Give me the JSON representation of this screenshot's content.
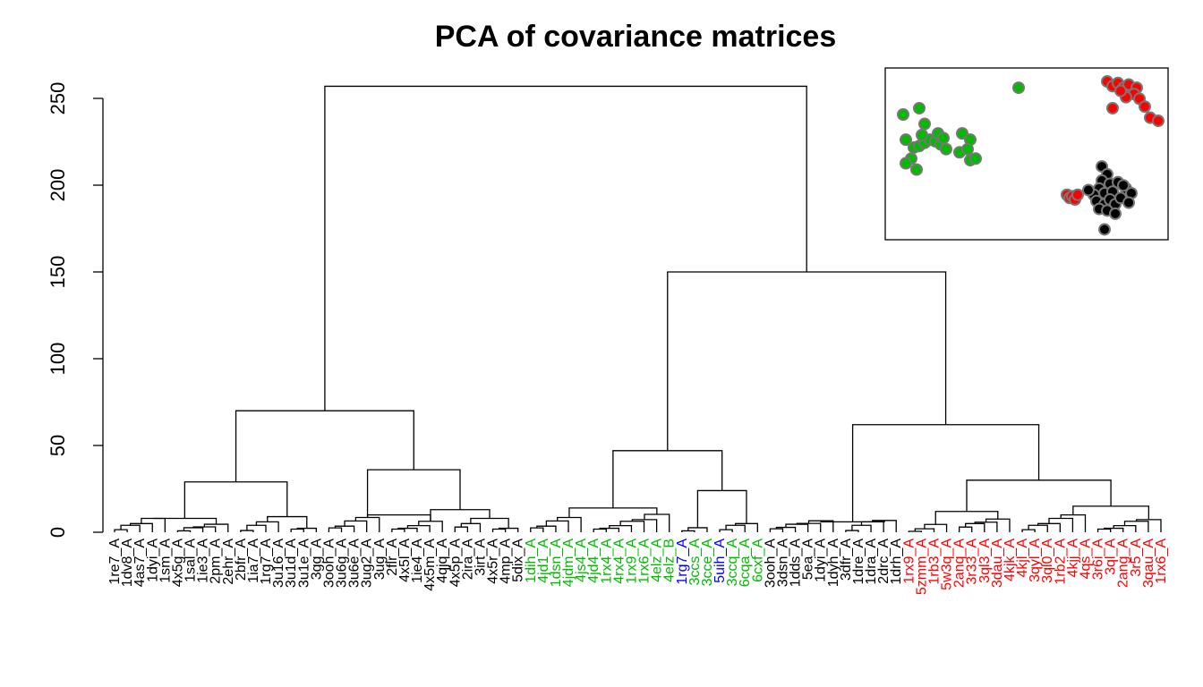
{
  "chart_data": {
    "type": "dendrogram",
    "title": "PCA of covariance matrices",
    "xlabel": "",
    "ylabel": "",
    "ylim": [
      0,
      265
    ],
    "yticks": [
      0,
      50,
      100,
      150,
      200,
      250
    ],
    "grid": false,
    "colors": {
      "black": "#000000",
      "green": "#00bb00",
      "blue": "#0000ff",
      "red": "#ff0000"
    },
    "leaves": [
      {
        "label": "1re7_A",
        "color": "black"
      },
      {
        "label": "1dv8_A",
        "color": "black"
      },
      {
        "label": "4as7_A",
        "color": "black"
      },
      {
        "label": "1dyi_A",
        "color": "black"
      },
      {
        "label": "1sm_A",
        "color": "black"
      },
      {
        "label": "4x5g_A",
        "color": "black"
      },
      {
        "label": "1sal_A",
        "color": "black"
      },
      {
        "label": "1ie3_A",
        "color": "black"
      },
      {
        "label": "2pm_A",
        "color": "black"
      },
      {
        "label": "2ehr_A",
        "color": "black"
      },
      {
        "label": "2bfr_A",
        "color": "black"
      },
      {
        "label": "1ia7_A",
        "color": "black"
      },
      {
        "label": "1rg7_A",
        "color": "black"
      },
      {
        "label": "3u16_A",
        "color": "black"
      },
      {
        "label": "3u1d_A",
        "color": "black"
      },
      {
        "label": "3u1e_A",
        "color": "black"
      },
      {
        "label": "3gg_A",
        "color": "black"
      },
      {
        "label": "3ooh_A",
        "color": "black"
      },
      {
        "label": "3u6g_A",
        "color": "black"
      },
      {
        "label": "3u6e_A",
        "color": "black"
      },
      {
        "label": "3ug2_A",
        "color": "black"
      },
      {
        "label": "3ug_A",
        "color": "black"
      },
      {
        "label": "2flr_A",
        "color": "black"
      },
      {
        "label": "4x5l_A",
        "color": "black"
      },
      {
        "label": "1ie4_A",
        "color": "black"
      },
      {
        "label": "4x5m_A",
        "color": "black"
      },
      {
        "label": "4qjq_A",
        "color": "black"
      },
      {
        "label": "4x5p_A",
        "color": "black"
      },
      {
        "label": "2ira_A",
        "color": "black"
      },
      {
        "label": "3irt_A",
        "color": "black"
      },
      {
        "label": "4x5r_A",
        "color": "black"
      },
      {
        "label": "4mp_A",
        "color": "black"
      },
      {
        "label": "5dix_A",
        "color": "black"
      },
      {
        "label": "1dih_A",
        "color": "green"
      },
      {
        "label": "4jd1_A",
        "color": "green"
      },
      {
        "label": "1dsn_A",
        "color": "green"
      },
      {
        "label": "4jdm_A",
        "color": "green"
      },
      {
        "label": "4js4_A",
        "color": "green"
      },
      {
        "label": "4jd4_A",
        "color": "green"
      },
      {
        "label": "1rx4_A",
        "color": "green"
      },
      {
        "label": "4rx4_A",
        "color": "green"
      },
      {
        "label": "1rx9_A",
        "color": "green"
      },
      {
        "label": "1rx6_A",
        "color": "green"
      },
      {
        "label": "4elz_A",
        "color": "green"
      },
      {
        "label": "4elz_B",
        "color": "green"
      },
      {
        "label": "1rg7_A",
        "color": "blue"
      },
      {
        "label": "3ccs_A",
        "color": "green"
      },
      {
        "label": "3cce_A",
        "color": "green"
      },
      {
        "label": "5uih_A",
        "color": "blue"
      },
      {
        "label": "3ccq_A",
        "color": "green"
      },
      {
        "label": "6cqa_A",
        "color": "green"
      },
      {
        "label": "6cxf_A",
        "color": "green"
      },
      {
        "label": "3ooh_A",
        "color": "black"
      },
      {
        "label": "3dsn_A",
        "color": "black"
      },
      {
        "label": "1dds_A",
        "color": "black"
      },
      {
        "label": "5ea_A",
        "color": "black"
      },
      {
        "label": "1dyi_A",
        "color": "black"
      },
      {
        "label": "1dyh_A",
        "color": "black"
      },
      {
        "label": "3dfr_A",
        "color": "black"
      },
      {
        "label": "1dre_A",
        "color": "black"
      },
      {
        "label": "1dra_A",
        "color": "black"
      },
      {
        "label": "2drc_A",
        "color": "black"
      },
      {
        "label": "1drh_A",
        "color": "black"
      },
      {
        "label": "1rx9_A",
        "color": "red"
      },
      {
        "label": "5zmm_A",
        "color": "red"
      },
      {
        "label": "1rb3_A",
        "color": "red"
      },
      {
        "label": "5w3q_A",
        "color": "red"
      },
      {
        "label": "2anq_A",
        "color": "red"
      },
      {
        "label": "3r33_A",
        "color": "red"
      },
      {
        "label": "3ql3_A",
        "color": "red"
      },
      {
        "label": "3dau_A",
        "color": "red"
      },
      {
        "label": "4kjk_A",
        "color": "red"
      },
      {
        "label": "4kjl_A",
        "color": "red"
      },
      {
        "label": "3qyl_A",
        "color": "red"
      },
      {
        "label": "3ql0_A",
        "color": "red"
      },
      {
        "label": "1rb2_A",
        "color": "red"
      },
      {
        "label": "4kjj_A",
        "color": "red"
      },
      {
        "label": "4qs_A",
        "color": "red"
      },
      {
        "label": "3r6i_A",
        "color": "red"
      },
      {
        "label": "3ql_A",
        "color": "red"
      },
      {
        "label": "2ang_A",
        "color": "red"
      },
      {
        "label": "3r5_A",
        "color": "red"
      },
      {
        "label": "3qau_A",
        "color": "red"
      },
      {
        "label": "1rx6_A",
        "color": "red"
      }
    ],
    "merges": [
      {
        "a": "s:0-4",
        "b": "s:5-9",
        "h": 8
      },
      {
        "a": "s:10-13",
        "b": "s:14-16",
        "h": 9
      },
      {
        "a": "s:0-9",
        "b": "s:10-16",
        "h": 29
      },
      {
        "a": "s:17-21",
        "b": "s:22-26",
        "h": 10
      },
      {
        "a": "s:27-29",
        "b": "s:30-32",
        "h": 8
      },
      {
        "a": "s:22-26",
        "b": "s:27-32",
        "h": 13
      },
      {
        "a": "s:17-21",
        "b": "s:22-32",
        "h": 36
      },
      {
        "a": "s:0-16",
        "b": "s:17-32",
        "h": 70
      },
      {
        "a": "s:33-37",
        "b": "s:38-44",
        "h": 14
      },
      {
        "a": "s:45-47",
        "b": "s:48-51",
        "h": 24
      },
      {
        "a": "s:33-44",
        "b": "s:45-51",
        "h": 47
      },
      {
        "a": "s:52-57",
        "b": "s:58-62",
        "h": 6
      },
      {
        "a": "s:63-66",
        "b": "s:67-71",
        "h": 12
      },
      {
        "a": "s:72-77",
        "b": "s:78-83",
        "h": 15
      },
      {
        "a": "s:63-71",
        "b": "s:72-83",
        "h": 30
      },
      {
        "a": "s:52-62",
        "b": "s:63-83",
        "h": 62
      },
      {
        "a": "s:33-51",
        "b": "s:52-83",
        "h": 150
      },
      {
        "a": "s:0-32",
        "b": "s:33-83",
        "h": 257
      }
    ],
    "inset": {
      "type": "scatter",
      "xlim": [
        0,
        100
      ],
      "ylim": [
        0,
        100
      ],
      "points": [
        {
          "x": 4,
          "y": 75,
          "c": "green"
        },
        {
          "x": 10,
          "y": 79,
          "c": "green"
        },
        {
          "x": 12,
          "y": 69,
          "c": "green"
        },
        {
          "x": 5,
          "y": 59,
          "c": "green"
        },
        {
          "x": 8,
          "y": 54,
          "c": "green"
        },
        {
          "x": 10,
          "y": 55,
          "c": "green"
        },
        {
          "x": 12,
          "y": 57,
          "c": "green"
        },
        {
          "x": 14,
          "y": 59,
          "c": "green"
        },
        {
          "x": 16,
          "y": 58,
          "c": "green"
        },
        {
          "x": 7,
          "y": 47,
          "c": "green"
        },
        {
          "x": 9,
          "y": 40,
          "c": "green"
        },
        {
          "x": 5,
          "y": 44,
          "c": "green"
        },
        {
          "x": 18,
          "y": 56,
          "c": "green"
        },
        {
          "x": 20,
          "y": 53,
          "c": "green"
        },
        {
          "x": 11,
          "y": 62,
          "c": "green"
        },
        {
          "x": 17,
          "y": 63,
          "c": "green"
        },
        {
          "x": 19,
          "y": 60,
          "c": "green"
        },
        {
          "x": 26,
          "y": 63,
          "c": "green"
        },
        {
          "x": 29,
          "y": 59,
          "c": "green"
        },
        {
          "x": 25,
          "y": 51,
          "c": "green"
        },
        {
          "x": 28,
          "y": 53,
          "c": "green"
        },
        {
          "x": 29,
          "y": 46,
          "c": "green"
        },
        {
          "x": 31,
          "y": 47,
          "c": "green"
        },
        {
          "x": 47,
          "y": 92,
          "c": "green"
        },
        {
          "x": 80,
          "y": 96,
          "c": "red"
        },
        {
          "x": 82,
          "y": 93,
          "c": "red"
        },
        {
          "x": 84,
          "y": 95,
          "c": "red"
        },
        {
          "x": 86,
          "y": 92,
          "c": "red"
        },
        {
          "x": 88,
          "y": 94,
          "c": "red"
        },
        {
          "x": 91,
          "y": 92,
          "c": "red"
        },
        {
          "x": 90,
          "y": 88,
          "c": "red"
        },
        {
          "x": 87,
          "y": 86,
          "c": "red"
        },
        {
          "x": 92,
          "y": 85,
          "c": "red"
        },
        {
          "x": 94,
          "y": 80,
          "c": "red"
        },
        {
          "x": 82,
          "y": 79,
          "c": "red"
        },
        {
          "x": 96,
          "y": 73,
          "c": "red"
        },
        {
          "x": 99,
          "y": 71,
          "c": "red"
        },
        {
          "x": 85,
          "y": 90,
          "c": "red"
        },
        {
          "x": 65,
          "y": 24,
          "c": "red"
        },
        {
          "x": 66,
          "y": 22,
          "c": "red"
        },
        {
          "x": 67,
          "y": 23,
          "c": "red"
        },
        {
          "x": 68,
          "y": 21,
          "c": "red"
        },
        {
          "x": 69,
          "y": 24,
          "c": "red"
        },
        {
          "x": 78,
          "y": 42,
          "c": "black"
        },
        {
          "x": 80,
          "y": 37,
          "c": "black"
        },
        {
          "x": 78,
          "y": 33,
          "c": "black"
        },
        {
          "x": 81,
          "y": 31,
          "c": "black"
        },
        {
          "x": 77,
          "y": 28,
          "c": "black"
        },
        {
          "x": 79,
          "y": 25,
          "c": "black"
        },
        {
          "x": 82,
          "y": 26,
          "c": "black"
        },
        {
          "x": 75,
          "y": 24,
          "c": "black"
        },
        {
          "x": 76,
          "y": 20,
          "c": "black"
        },
        {
          "x": 79,
          "y": 18,
          "c": "black"
        },
        {
          "x": 81,
          "y": 21,
          "c": "black"
        },
        {
          "x": 83,
          "y": 18,
          "c": "black"
        },
        {
          "x": 77,
          "y": 15,
          "c": "black"
        },
        {
          "x": 85,
          "y": 22,
          "c": "black"
        },
        {
          "x": 87,
          "y": 28,
          "c": "black"
        },
        {
          "x": 89,
          "y": 25,
          "c": "black"
        },
        {
          "x": 84,
          "y": 32,
          "c": "black"
        },
        {
          "x": 86,
          "y": 30,
          "c": "black"
        },
        {
          "x": 80,
          "y": 14,
          "c": "black"
        },
        {
          "x": 83,
          "y": 12,
          "c": "black"
        },
        {
          "x": 73,
          "y": 27,
          "c": "black"
        },
        {
          "x": 79,
          "y": 2,
          "c": "black"
        },
        {
          "x": 88,
          "y": 19,
          "c": "black"
        }
      ]
    }
  }
}
